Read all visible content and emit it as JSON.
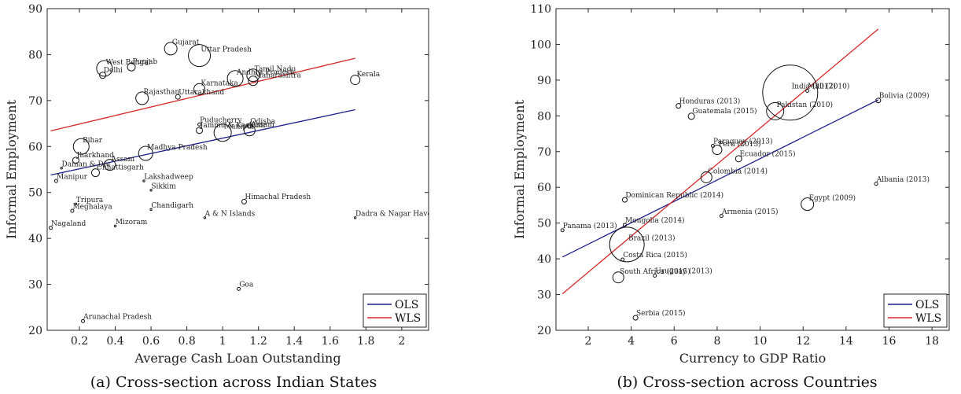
{
  "chart_data": [
    {
      "type": "scatter",
      "caption": "(a) Cross-section across Indian States",
      "xlabel": "Average Cash Loan Outstanding",
      "ylabel": "Informal Employment",
      "xlim": [
        0.02,
        2.15
      ],
      "ylim": [
        20,
        90
      ],
      "xticks": [
        0.2,
        0.4,
        0.6,
        0.8,
        1,
        1.2,
        1.4,
        1.6,
        1.8,
        2
      ],
      "xtick_labels": [
        "0.2",
        "0.4",
        "0.6",
        "0.8",
        "1",
        "1.2",
        "1.4",
        "1.6",
        "1.8",
        "2"
      ],
      "yticks": [
        20,
        30,
        40,
        50,
        60,
        70,
        80,
        90
      ],
      "ytick_labels": [
        "20",
        "30",
        "40",
        "50",
        "60",
        "70",
        "80",
        "90"
      ],
      "lines": [
        {
          "name": "OLS",
          "color": "#1f1f8c",
          "x": [
            0.04,
            1.74
          ],
          "y": [
            53.8,
            68.0
          ]
        },
        {
          "name": "WLS",
          "color": "#d62728",
          "x": [
            0.04,
            1.74
          ],
          "y": [
            63.4,
            79.2
          ]
        }
      ],
      "legend": {
        "position": "bottom-right",
        "entries": [
          "OLS",
          "WLS"
        ]
      },
      "points": [
        {
          "label": "Gujarat",
          "x": 0.71,
          "y": 81.3,
          "r": 8
        },
        {
          "label": "Uttar Pradesh",
          "x": 0.87,
          "y": 79.8,
          "r": 14
        },
        {
          "label": "West Bengal",
          "x": 0.34,
          "y": 77.0,
          "r": 10
        },
        {
          "label": "Punjab",
          "x": 0.49,
          "y": 77.3,
          "r": 5
        },
        {
          "label": "Delhi",
          "x": 0.33,
          "y": 75.5,
          "r": 4
        },
        {
          "label": "Tamil Nadu",
          "x": 1.17,
          "y": 75.5,
          "r": 8
        },
        {
          "label": "Andhra Pradesh",
          "x": 1.07,
          "y": 74.8,
          "r": 10
        },
        {
          "label": "Maharashtra",
          "x": 1.17,
          "y": 74.3,
          "r": 6
        },
        {
          "label": "Kerala",
          "x": 1.74,
          "y": 74.5,
          "r": 6
        },
        {
          "label": "Karnataka",
          "x": 0.87,
          "y": 72.5,
          "r": 7
        },
        {
          "label": "Rajasthan",
          "x": 0.55,
          "y": 70.5,
          "r": 8
        },
        {
          "label": "Uttarakhand",
          "x": 0.75,
          "y": 70.8,
          "r": 3
        },
        {
          "label": "Puducherry",
          "x": 0.87,
          "y": 64.8,
          "r": 2
        },
        {
          "label": "Jammu & Kashmir",
          "x": 0.87,
          "y": 63.5,
          "r": 4
        },
        {
          "label": "Odisha",
          "x": 1.15,
          "y": 64.5,
          "r": 3
        },
        {
          "label": "Manipur",
          "x": 1.0,
          "y": 63.0,
          "r": 11
        },
        {
          "label": "Assam",
          "x": 1.15,
          "y": 63.5,
          "r": 7
        },
        {
          "label": "Bihar",
          "x": 0.21,
          "y": 60.0,
          "r": 10
        },
        {
          "label": "Madhya Pradesh",
          "x": 0.57,
          "y": 58.5,
          "r": 9
        },
        {
          "label": "Jharkhand",
          "x": 0.18,
          "y": 57.0,
          "r": 4
        },
        {
          "label": "Daman & Diu",
          "x": 0.1,
          "y": 55.3,
          "r": 1
        },
        {
          "label": "Assam",
          "x": 0.37,
          "y": 56.0,
          "r": 7
        },
        {
          "label": "Chhattisgarh",
          "x": 0.29,
          "y": 54.3,
          "r": 5
        },
        {
          "label": "Manipur",
          "x": 0.07,
          "y": 52.5,
          "r": 2
        },
        {
          "label": "Lakshadweep",
          "x": 0.56,
          "y": 52.5,
          "r": 1
        },
        {
          "label": "Sikkim",
          "x": 0.6,
          "y": 50.5,
          "r": 1
        },
        {
          "label": "Himachal Pradesh",
          "x": 1.12,
          "y": 48.0,
          "r": 3
        },
        {
          "label": "Tripura",
          "x": 0.18,
          "y": 47.5,
          "r": 1
        },
        {
          "label": "Meghalaya",
          "x": 0.16,
          "y": 46.0,
          "r": 2
        },
        {
          "label": "Chandigarh",
          "x": 0.6,
          "y": 46.3,
          "r": 1
        },
        {
          "label": "A & N Islands",
          "x": 0.9,
          "y": 44.5,
          "r": 1
        },
        {
          "label": "Dadra & Nagar Haveli",
          "x": 1.74,
          "y": 44.5,
          "r": 1
        },
        {
          "label": "Nagaland",
          "x": 0.04,
          "y": 42.3,
          "r": 2
        },
        {
          "label": "Mizoram",
          "x": 0.4,
          "y": 42.7,
          "r": 1
        },
        {
          "label": "Goa",
          "x": 1.09,
          "y": 29.0,
          "r": 2
        },
        {
          "label": "Arunachal Pradesh",
          "x": 0.22,
          "y": 22.0,
          "r": 2
        }
      ]
    },
    {
      "type": "scatter",
      "caption": "(b) Cross-section across Countries",
      "xlabel": "Currency to GDP Ratio",
      "ylabel": "Informal Employment",
      "xlim": [
        0.5,
        18.8
      ],
      "ylim": [
        20,
        110
      ],
      "xticks": [
        2,
        4,
        6,
        8,
        10,
        12,
        14,
        16,
        18
      ],
      "xtick_labels": [
        "2",
        "4",
        "6",
        "8",
        "10",
        "12",
        "14",
        "16",
        "18"
      ],
      "yticks": [
        20,
        30,
        40,
        50,
        60,
        70,
        80,
        90,
        100,
        110
      ],
      "ytick_labels": [
        "20",
        "30",
        "40",
        "50",
        "60",
        "70",
        "80",
        "90",
        "100",
        "110"
      ],
      "lines": [
        {
          "name": "OLS",
          "color": "#1f1f8c",
          "x": [
            0.8,
            15.5
          ],
          "y": [
            40.5,
            84.5
          ]
        },
        {
          "name": "WLS",
          "color": "#d62728",
          "x": [
            0.8,
            15.5
          ],
          "y": [
            30.2,
            104.3
          ]
        }
      ],
      "legend": {
        "position": "bottom-right",
        "entries": [
          "OLS",
          "WLS"
        ]
      },
      "points": [
        {
          "label": "India (2012)",
          "x": 11.4,
          "y": 86.5,
          "r": 35
        },
        {
          "label": "Mali (2010)",
          "x": 12.2,
          "y": 87.0,
          "r": 2
        },
        {
          "label": "Bolivia (2009)",
          "x": 15.5,
          "y": 84.3,
          "r": 3
        },
        {
          "label": "Honduras (2013)",
          "x": 6.2,
          "y": 82.8,
          "r": 3
        },
        {
          "label": "Pakistan (2010)",
          "x": 10.7,
          "y": 81.3,
          "r": 11
        },
        {
          "label": "Guatemala (2015)",
          "x": 6.8,
          "y": 79.9,
          "r": 4
        },
        {
          "label": "Paraguay (2013)",
          "x": 7.8,
          "y": 71.6,
          "r": 2
        },
        {
          "label": "Peru (2013)",
          "x": 8.0,
          "y": 70.5,
          "r": 6
        },
        {
          "label": "Ecuador (2015)",
          "x": 9.0,
          "y": 68.0,
          "r": 4
        },
        {
          "label": "Colombia (2014)",
          "x": 7.5,
          "y": 62.8,
          "r": 7
        },
        {
          "label": "Albania (2013)",
          "x": 15.4,
          "y": 61.0,
          "r": 2
        },
        {
          "label": "Dominican Republic (2014)",
          "x": 3.7,
          "y": 56.5,
          "r": 3
        },
        {
          "label": "Egypt (2009)",
          "x": 12.2,
          "y": 55.3,
          "r": 8
        },
        {
          "label": "Armenia (2015)",
          "x": 8.2,
          "y": 52.0,
          "r": 2
        },
        {
          "label": "Mongolia (2014)",
          "x": 3.7,
          "y": 49.5,
          "r": 2
        },
        {
          "label": "Panama (2013)",
          "x": 0.8,
          "y": 48.0,
          "r": 2
        },
        {
          "label": "Brazil (2013)",
          "x": 3.8,
          "y": 44.0,
          "r": 22
        },
        {
          "label": "Costa Rica (2015)",
          "x": 3.6,
          "y": 39.8,
          "r": 2
        },
        {
          "label": "South Africa (2015)",
          "x": 3.4,
          "y": 34.8,
          "r": 7
        },
        {
          "label": "Uruguay (2013)",
          "x": 5.1,
          "y": 35.3,
          "r": 2
        },
        {
          "label": "Serbia (2015)",
          "x": 4.2,
          "y": 23.5,
          "r": 3
        }
      ]
    }
  ]
}
